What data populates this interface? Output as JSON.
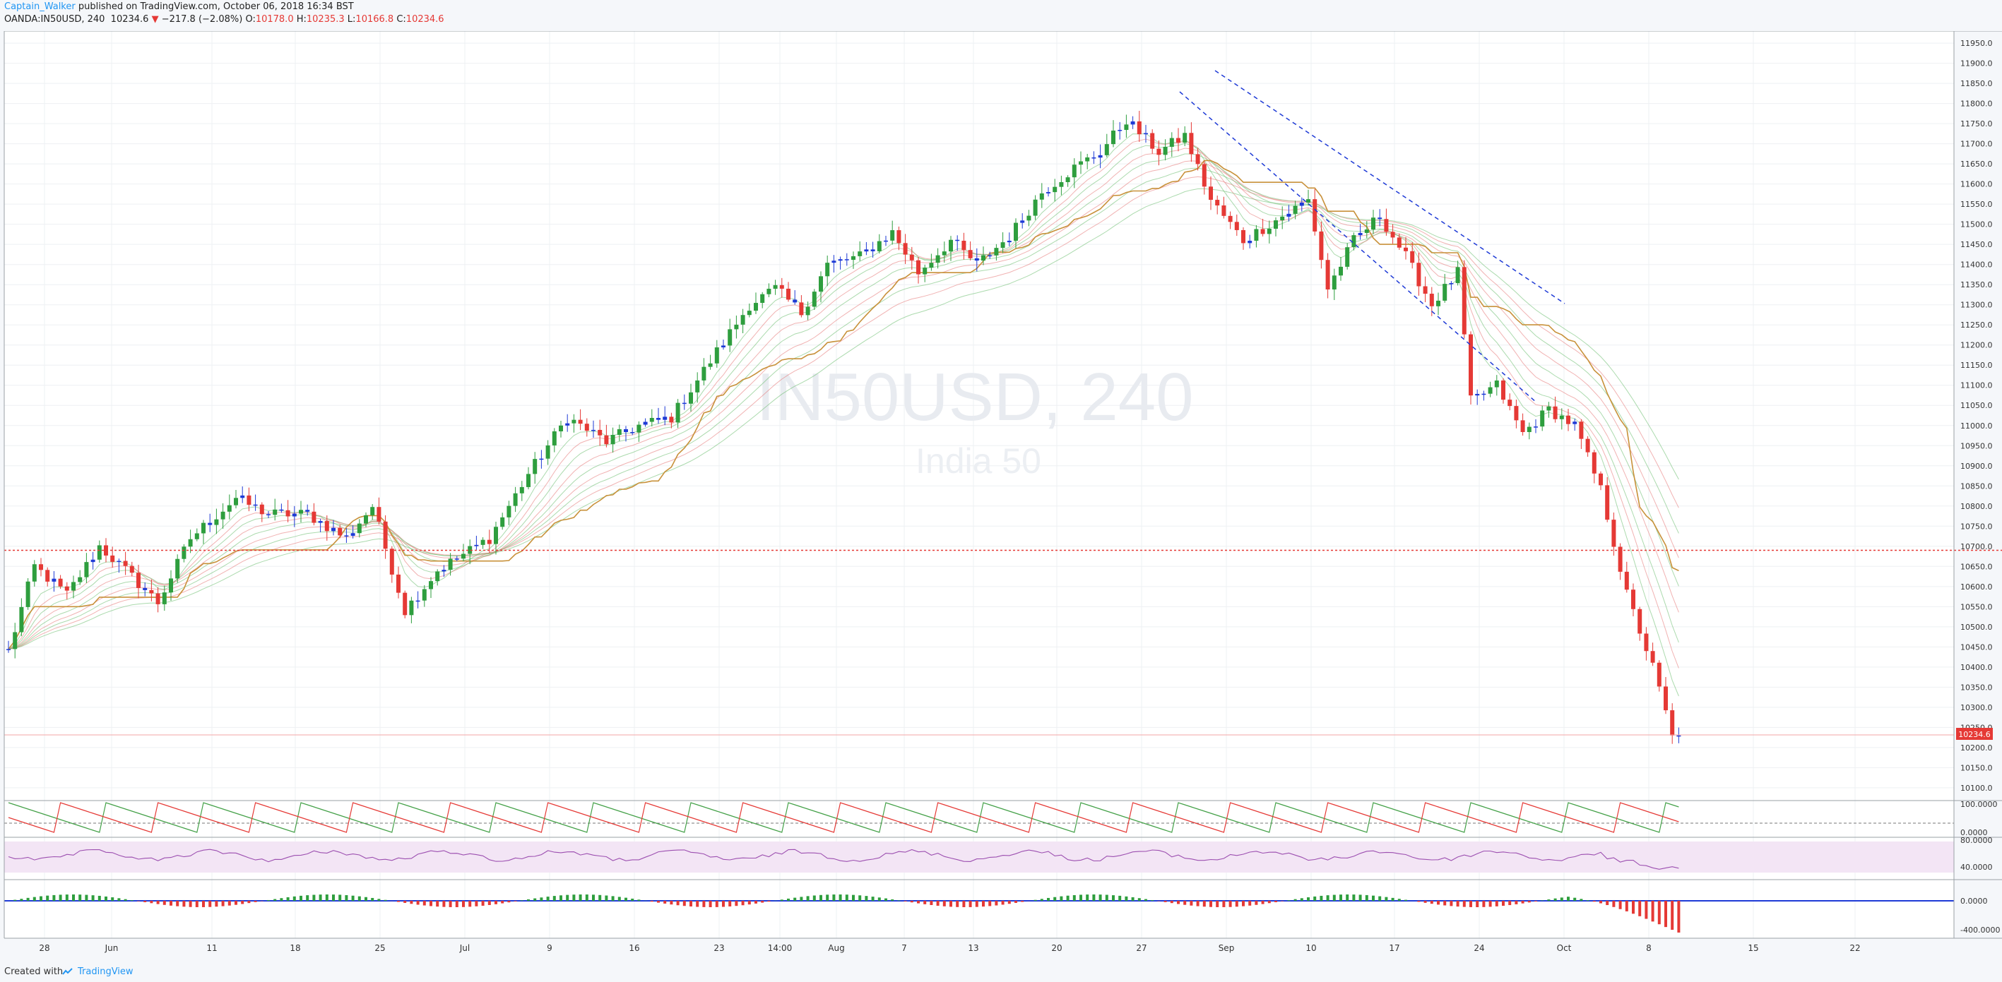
{
  "header": {
    "author": "Captain_Walker",
    "published_text": "published on TradingView.com, October 06, 2018 16:34 BST",
    "symbol": "OANDA:IN50USD, 240",
    "last": "10234.6",
    "change_arrow": "▼",
    "change": "−217.8 (−2.08%)",
    "o_label": "O:",
    "o_value": "10178.0",
    "h_label": "H:",
    "h_value": "10235.3",
    "l_label": "L:",
    "l_value": "10166.8",
    "c_label": "C:",
    "c_value": "10234.6"
  },
  "watermark": {
    "symbol": "IN50USD, 240",
    "name": "India 50"
  },
  "footer": {
    "created_with": "Created with",
    "brand": "TradingView"
  },
  "colors": {
    "up": "#2e9e3e",
    "down": "#e53935",
    "neutral": "#1e3ad6",
    "band_red": "#e57373",
    "band_green": "#66bb6a",
    "kijun": "#c8913a",
    "hline": "#e53935",
    "stoch_green": "#43a047",
    "rsi": "#9c4fb0",
    "rsi_bg": "#f3e5f5",
    "last_price_bg": "#e53935"
  },
  "chart_data": {
    "type": "candlestick",
    "title": "OANDA:IN50USD, 240",
    "x_ticks": [
      "28",
      "Jun",
      "11",
      "18",
      "25",
      "Jul",
      "9",
      "16",
      "23",
      "14:00",
      "Aug",
      "7",
      "13",
      "20",
      "27",
      "Sep",
      "10",
      "17",
      "24",
      "Oct",
      "8",
      "15",
      "22"
    ],
    "y_ticks": [
      "11950.0",
      "11900.0",
      "11850.0",
      "11800.0",
      "11750.0",
      "11700.0",
      "11650.0",
      "11600.0",
      "11550.0",
      "11500.0",
      "11450.0",
      "11400.0",
      "11350.0",
      "11300.0",
      "11250.0",
      "11200.0",
      "11150.0",
      "11100.0",
      "11050.0",
      "11000.0",
      "10950.0",
      "10900.0",
      "10850.0",
      "10800.0",
      "10750.0",
      "10700.0",
      "10650.0",
      "10600.0",
      "10550.0",
      "10500.0",
      "10450.0",
      "10400.0",
      "10350.0",
      "10300.0",
      "10250.0",
      "10200.0",
      "10150.0",
      "10100.0"
    ],
    "ylim": [
      10070,
      11980
    ],
    "close_anchors": [
      [
        0,
        10440
      ],
      [
        4,
        10650
      ],
      [
        9,
        10580
      ],
      [
        14,
        10700
      ],
      [
        18,
        10640
      ],
      [
        23,
        10560
      ],
      [
        28,
        10720
      ],
      [
        35,
        10820
      ],
      [
        40,
        10780
      ],
      [
        46,
        10780
      ],
      [
        52,
        10720
      ],
      [
        56,
        10800
      ],
      [
        61,
        10540
      ],
      [
        66,
        10640
      ],
      [
        70,
        10680
      ],
      [
        74,
        10720
      ],
      [
        80,
        10880
      ],
      [
        86,
        11020
      ],
      [
        92,
        10960
      ],
      [
        97,
        11000
      ],
      [
        102,
        11020
      ],
      [
        108,
        11160
      ],
      [
        114,
        11300
      ],
      [
        118,
        11340
      ],
      [
        122,
        11280
      ],
      [
        126,
        11400
      ],
      [
        131,
        11420
      ],
      [
        136,
        11480
      ],
      [
        140,
        11380
      ],
      [
        145,
        11460
      ],
      [
        149,
        11400
      ],
      [
        154,
        11470
      ],
      [
        159,
        11580
      ],
      [
        164,
        11640
      ],
      [
        168,
        11680
      ],
      [
        172,
        11760
      ],
      [
        177,
        11680
      ],
      [
        181,
        11720
      ],
      [
        185,
        11560
      ],
      [
        190,
        11460
      ],
      [
        196,
        11520
      ],
      [
        200,
        11560
      ],
      [
        203,
        11340
      ],
      [
        207,
        11460
      ],
      [
        211,
        11520
      ],
      [
        215,
        11420
      ],
      [
        219,
        11300
      ],
      [
        223,
        11380
      ],
      [
        225,
        11060
      ],
      [
        229,
        11100
      ],
      [
        233,
        10980
      ],
      [
        237,
        11040
      ],
      [
        241,
        11000
      ],
      [
        245,
        10840
      ],
      [
        249,
        10580
      ],
      [
        253,
        10400
      ],
      [
        256,
        10230
      ]
    ],
    "horizontal_line": 10690,
    "last_price": "10234.6",
    "stoch_ticks": [
      "100.0000",
      "0.0000"
    ],
    "rsi_ticks": [
      "80.0000",
      "40.0000"
    ],
    "hist_ticks": [
      "0.0000",
      "-400.0000"
    ]
  }
}
